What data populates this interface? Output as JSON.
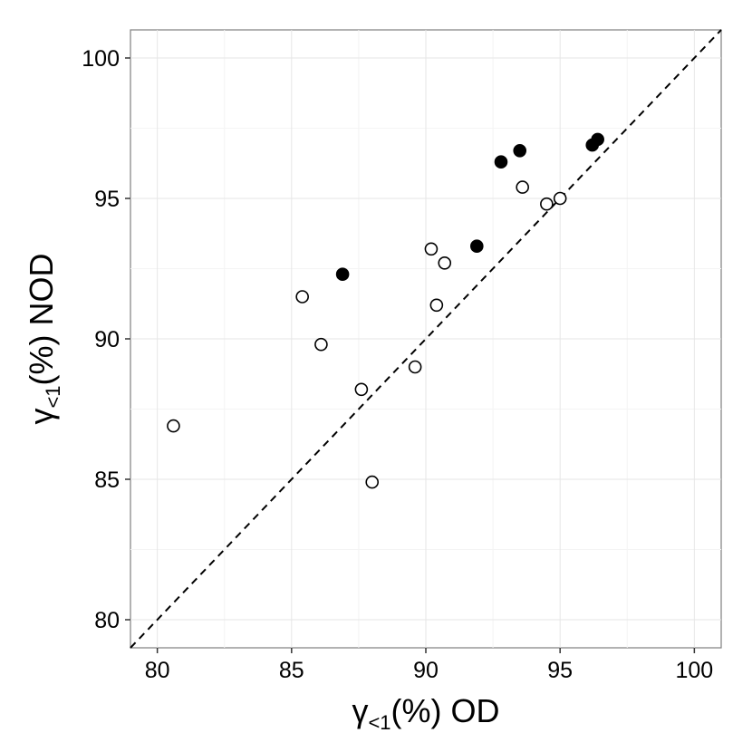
{
  "chart_data": {
    "type": "scatter",
    "xlabel": {
      "symbol": "γ",
      "subscript": "<1",
      "suffix": "(%)  OD"
    },
    "ylabel": {
      "symbol": "γ",
      "subscript": "<1",
      "suffix": "(%)  NOD"
    },
    "xlim": [
      79,
      101
    ],
    "ylim": [
      79,
      101
    ],
    "x_ticks": [
      80,
      85,
      90,
      95,
      100
    ],
    "y_ticks": [
      80,
      85,
      90,
      95,
      100
    ],
    "grid": true,
    "reference_line": {
      "style": "dashed",
      "slope": 1,
      "intercept": 0
    },
    "series": [
      {
        "marker": "open-circle",
        "points": [
          {
            "x": 80.6,
            "y": 86.9
          },
          {
            "x": 85.4,
            "y": 91.5
          },
          {
            "x": 86.1,
            "y": 89.8
          },
          {
            "x": 87.6,
            "y": 88.2
          },
          {
            "x": 88.0,
            "y": 84.9
          },
          {
            "x": 89.6,
            "y": 89.0
          },
          {
            "x": 90.2,
            "y": 93.2
          },
          {
            "x": 90.4,
            "y": 91.2
          },
          {
            "x": 90.7,
            "y": 92.7
          },
          {
            "x": 93.6,
            "y": 95.4
          },
          {
            "x": 94.5,
            "y": 94.8
          },
          {
            "x": 95.0,
            "y": 95.0
          }
        ]
      },
      {
        "marker": "filled-circle",
        "points": [
          {
            "x": 86.9,
            "y": 92.3
          },
          {
            "x": 91.9,
            "y": 93.3
          },
          {
            "x": 92.8,
            "y": 96.3
          },
          {
            "x": 93.5,
            "y": 96.7
          },
          {
            "x": 96.2,
            "y": 96.9
          },
          {
            "x": 96.4,
            "y": 97.1
          }
        ]
      }
    ]
  }
}
